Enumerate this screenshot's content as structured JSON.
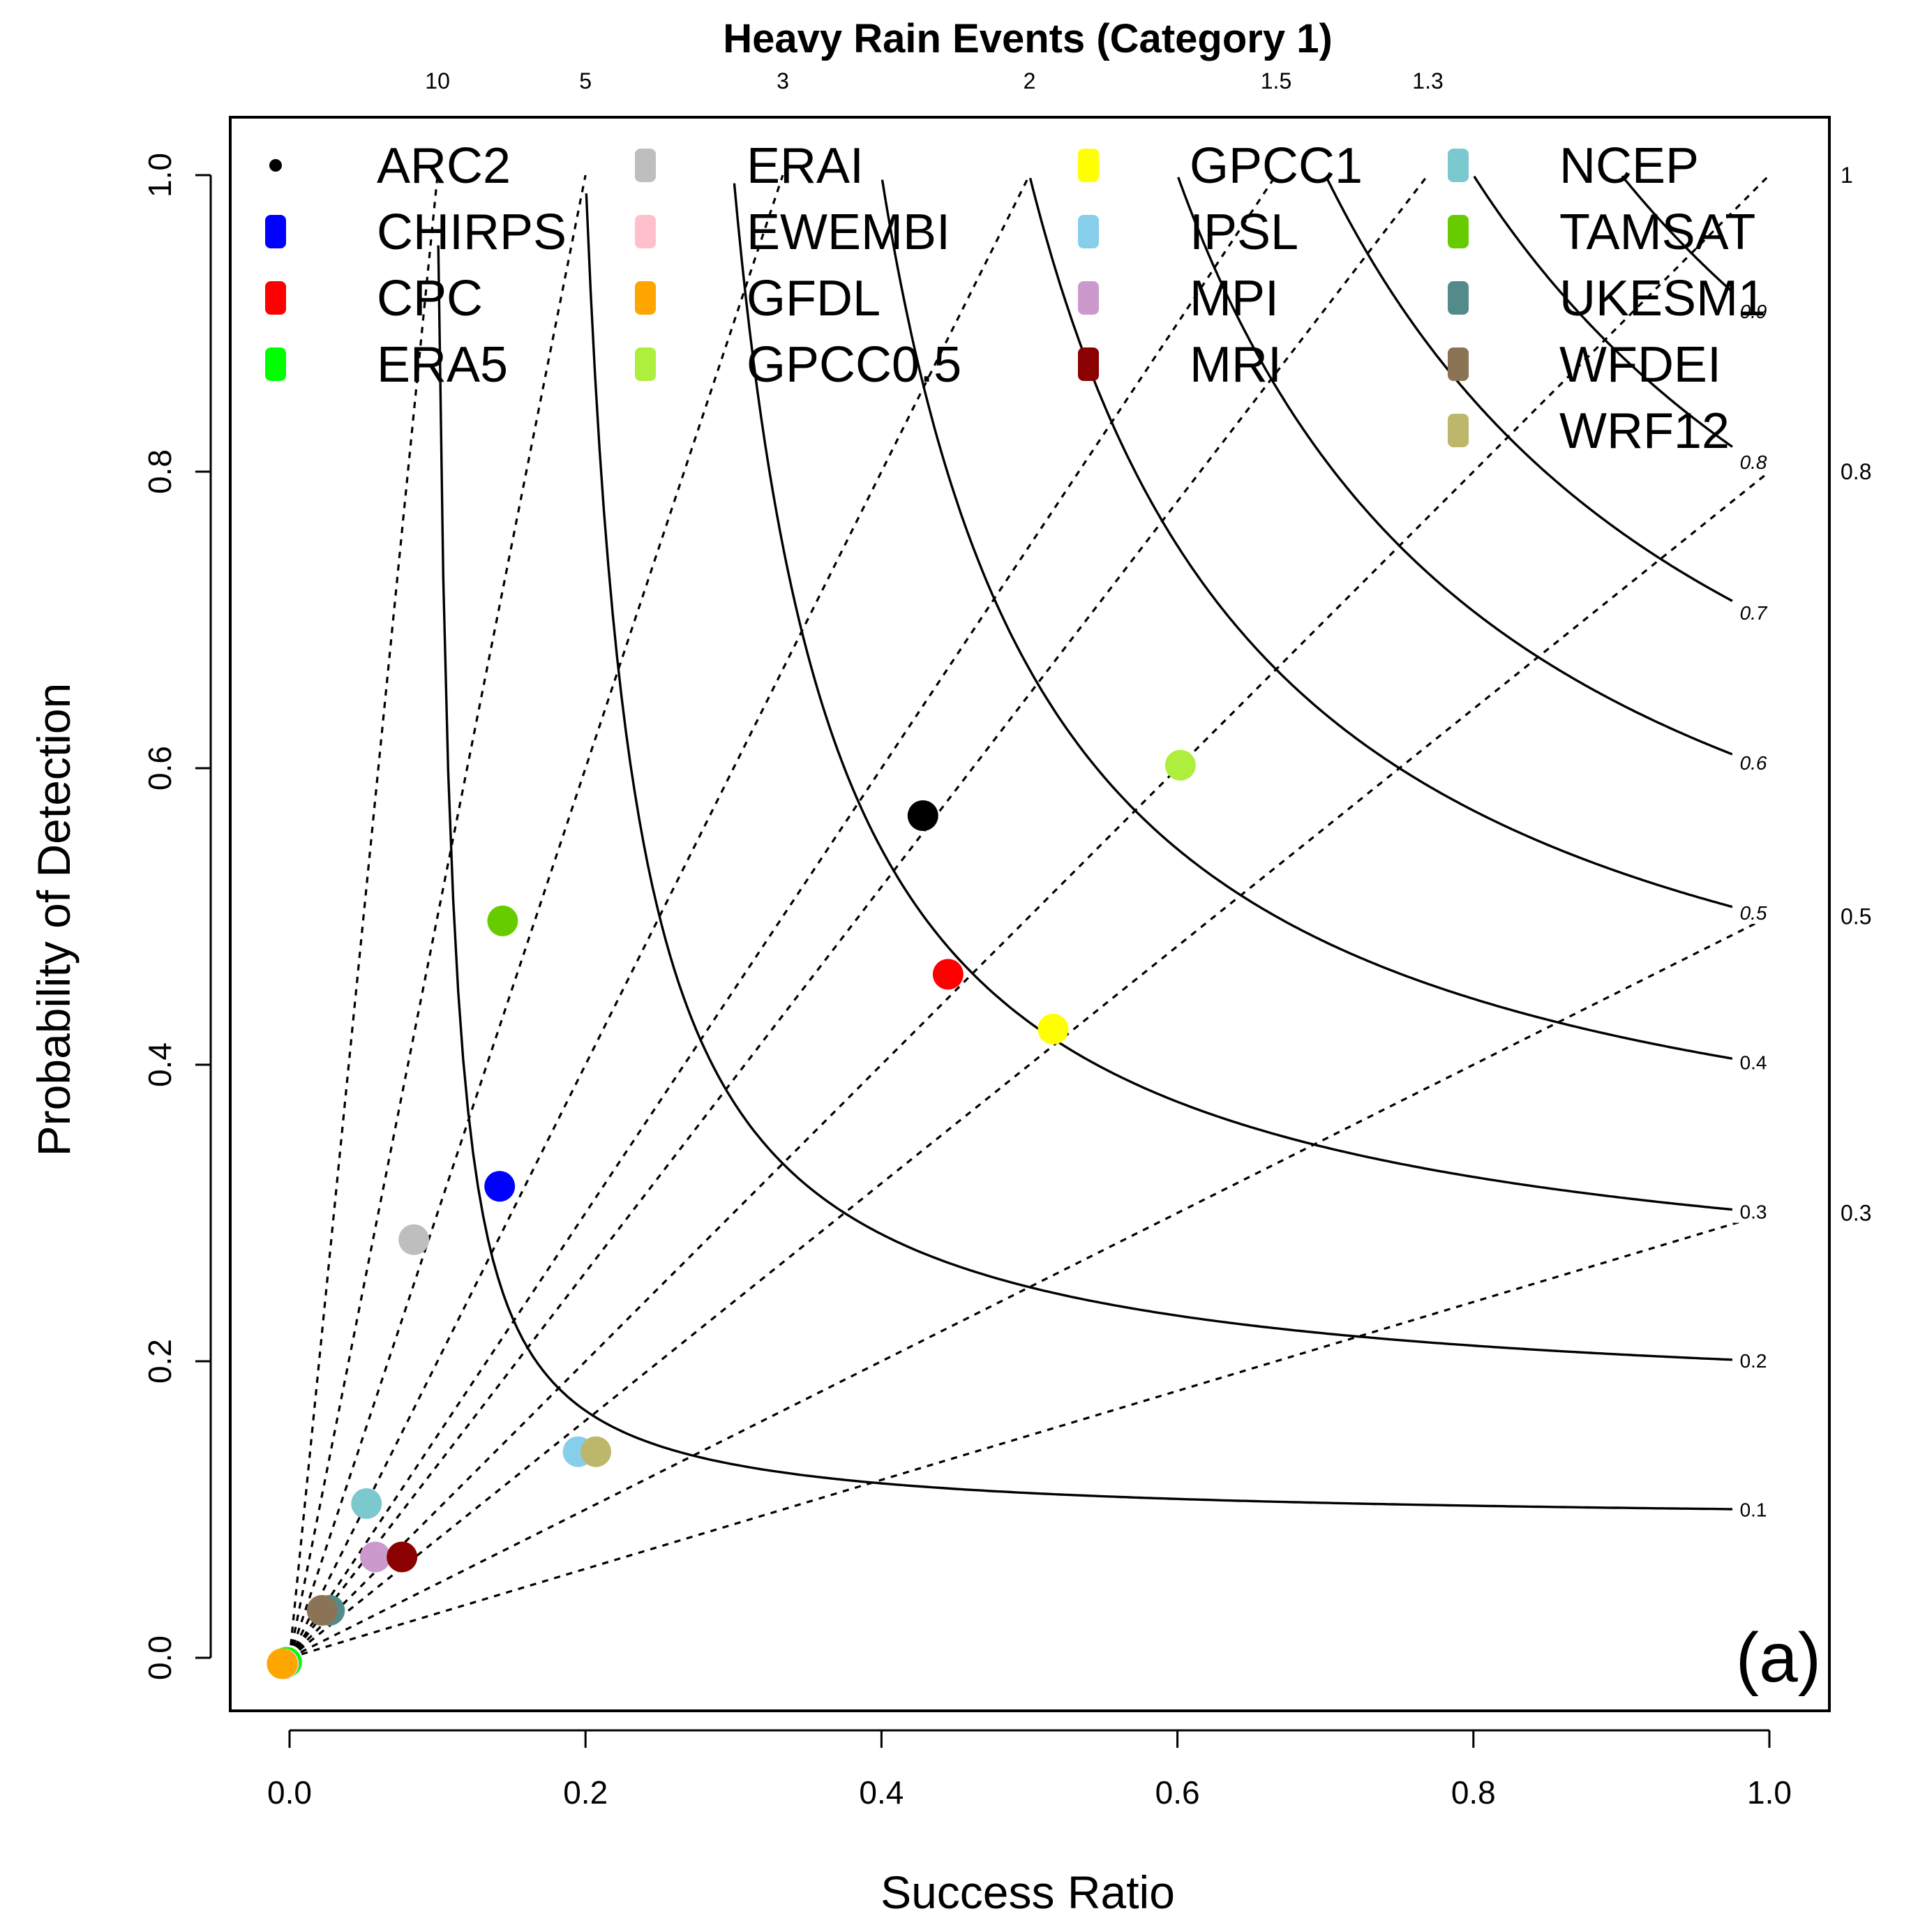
{
  "chart_data": {
    "type": "scatter",
    "title": "Heavy Rain Events (Category 1)",
    "xlabel": "Success Ratio",
    "ylabel": "Probability of Detection",
    "panel_label": "(a)",
    "xlim": [
      -0.04,
      1.04
    ],
    "ylim": [
      -0.04,
      1.04
    ],
    "x_ticks": [
      0.0,
      0.2,
      0.4,
      0.6,
      0.8,
      1.0
    ],
    "x_tick_labels": [
      "0.0",
      "0.2",
      "0.4",
      "0.6",
      "0.8",
      "1.0"
    ],
    "y_ticks": [
      0.0,
      0.2,
      0.4,
      0.6,
      0.8,
      1.0
    ],
    "y_tick_labels": [
      "0.0",
      "0.2",
      "0.4",
      "0.6",
      "0.8",
      "1.0"
    ],
    "bias_lines": {
      "values": [
        10,
        5,
        3,
        2,
        1.5,
        1.3,
        1,
        0.8,
        0.5,
        0.3
      ],
      "top_labels": [
        "10",
        "5",
        "3",
        "2",
        "1.5",
        "1.3"
      ],
      "right_labels": [
        "1",
        "0.8",
        "0.5",
        "0.3"
      ]
    },
    "csi_contours": {
      "values": [
        0.1,
        0.2,
        0.3,
        0.4,
        0.5,
        0.6,
        0.7,
        0.8,
        0.9
      ],
      "labels": [
        "0.1",
        "0.2",
        "0.3",
        "0.4",
        "0.5",
        "0.6",
        "0.7",
        "0.8",
        "0.9"
      ]
    },
    "legend_placement": "top",
    "series": [
      {
        "name": "ARC2",
        "color": "#000000",
        "marker": "dot",
        "x": 0.428,
        "y": 0.568
      },
      {
        "name": "CHIRPS",
        "color": "#0000ff",
        "x": 0.142,
        "y": 0.318
      },
      {
        "name": "CPC",
        "color": "#ff0000",
        "x": 0.445,
        "y": 0.461
      },
      {
        "name": "ERA5",
        "color": "#00ff00",
        "x": -0.002,
        "y": -0.003
      },
      {
        "name": "ERAI",
        "color": "#bebebe",
        "x": 0.084,
        "y": 0.282
      },
      {
        "name": "EWEMBI",
        "color": "#ffc0cb",
        "x": -0.004,
        "y": -0.004
      },
      {
        "name": "GFDL",
        "color": "#ffa500",
        "x": -0.005,
        "y": -0.004
      },
      {
        "name": "GPCC0.5",
        "color": "#aeee3c",
        "x": 0.602,
        "y": 0.602
      },
      {
        "name": "GPCC1",
        "color": "#ffff00",
        "x": 0.516,
        "y": 0.424
      },
      {
        "name": "IPSL",
        "color": "#87ceeb",
        "x": 0.195,
        "y": 0.139
      },
      {
        "name": "MPI",
        "color": "#cc99cc",
        "x": 0.058,
        "y": 0.068
      },
      {
        "name": "MRI",
        "color": "#8b0000",
        "x": 0.076,
        "y": 0.068
      },
      {
        "name": "NCEP",
        "color": "#7bc8cf",
        "x": 0.052,
        "y": 0.104
      },
      {
        "name": "TAMSAT",
        "color": "#66cc00",
        "x": 0.144,
        "y": 0.497
      },
      {
        "name": "UKESM1",
        "color": "#538b8b",
        "x": 0.027,
        "y": 0.032
      },
      {
        "name": "WFDEI",
        "color": "#8b7355",
        "x": 0.022,
        "y": 0.032
      },
      {
        "name": "WRF12",
        "color": "#bdb76b",
        "x": 0.207,
        "y": 0.139
      }
    ]
  }
}
